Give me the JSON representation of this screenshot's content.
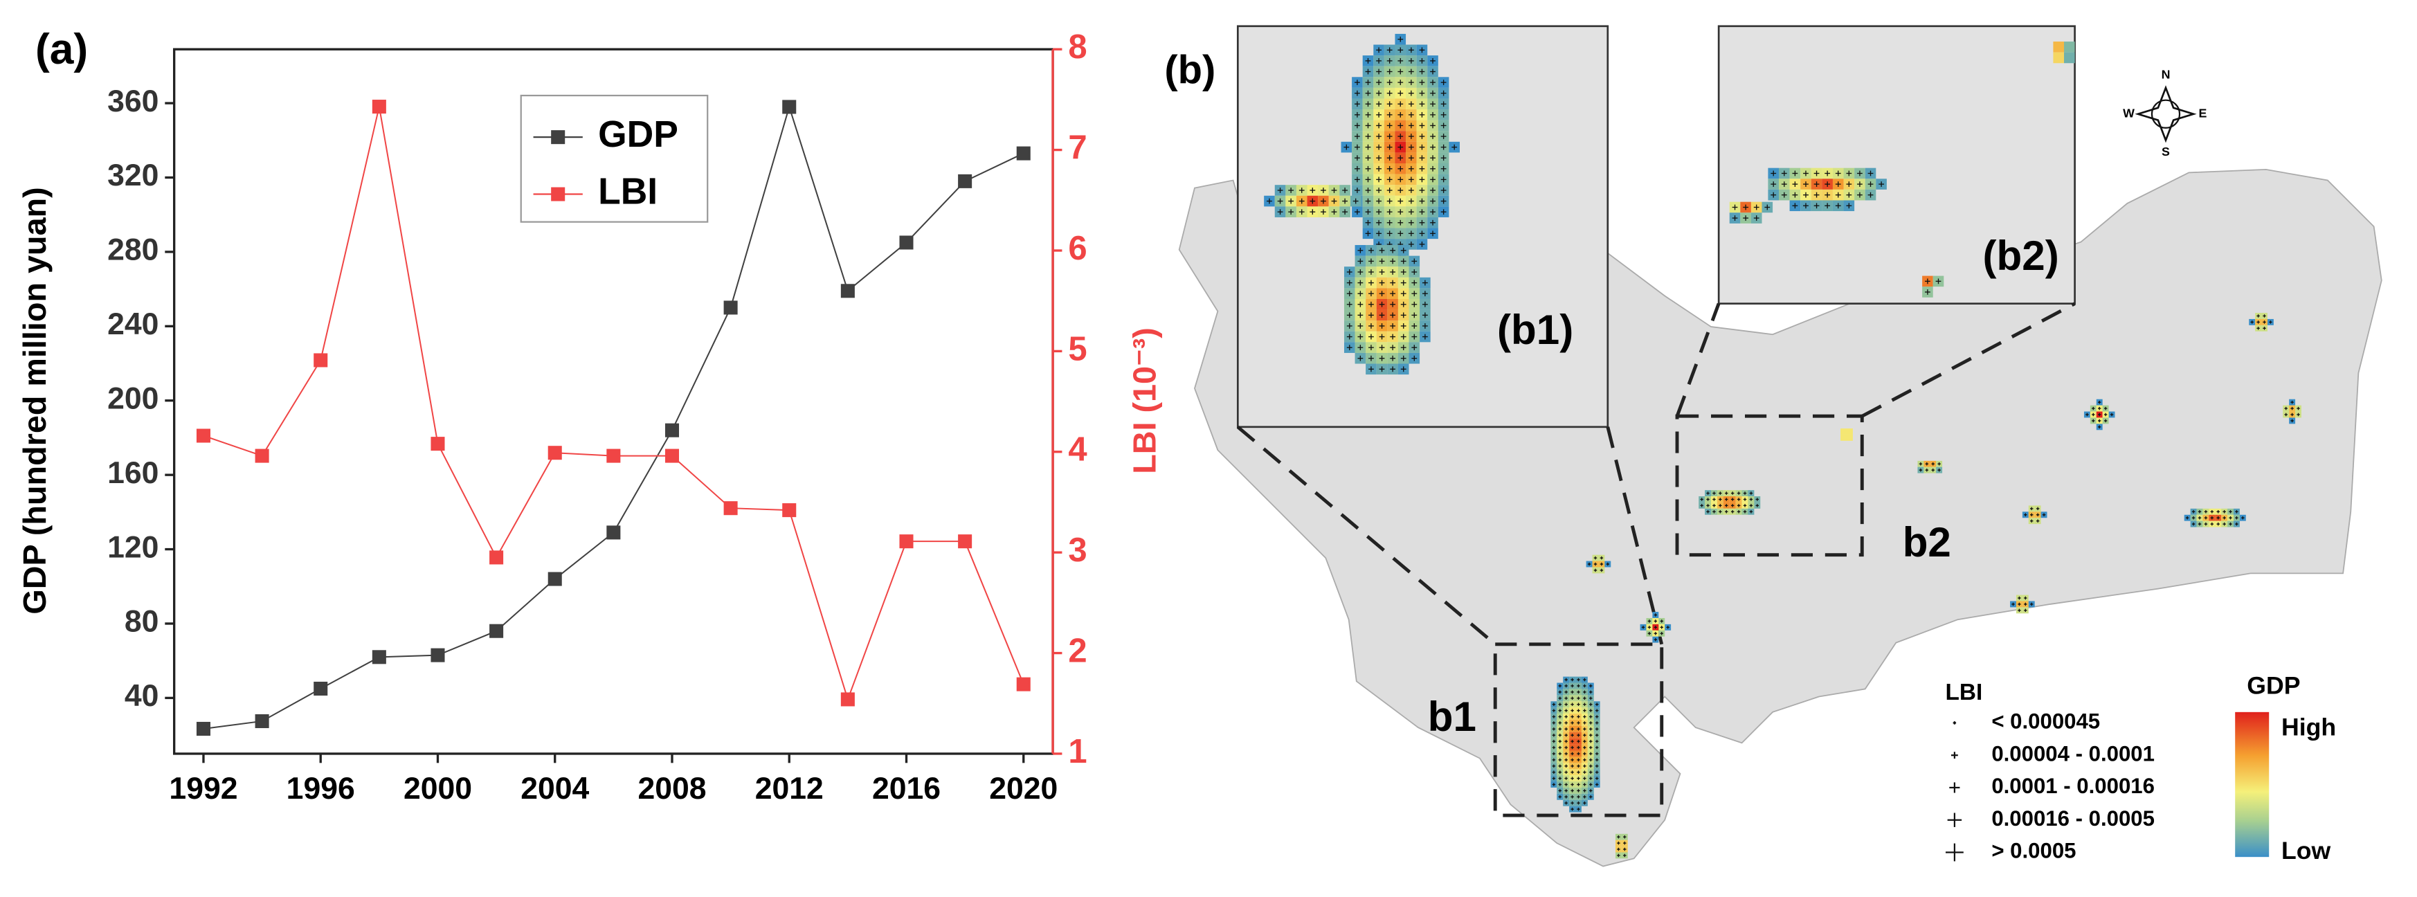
{
  "chart_data": {
    "type": "line",
    "panel_label": "(a)",
    "x": [
      1992,
      1994,
      1996,
      1998,
      2000,
      2002,
      2004,
      2006,
      2008,
      2010,
      2012,
      2014,
      2016,
      2018,
      2020
    ],
    "series": [
      {
        "name": "GDP",
        "color": "#404040",
        "values": [
          23.4,
          27.5,
          45,
          62,
          63,
          76,
          104,
          129,
          184,
          250,
          358,
          259,
          285,
          318,
          333
        ]
      },
      {
        "name": "LBI",
        "color": "#f04545",
        "axis": "y2",
        "values": [
          4.16,
          3.96,
          4.91,
          7.43,
          4.08,
          2.95,
          3.99,
          3.96,
          3.96,
          3.44,
          3.42,
          1.54,
          3.11,
          3.11,
          1.69
        ]
      }
    ],
    "ylabel": "GDP (hundred million yuan)",
    "y2label": "LBI (10⁻³)",
    "xlim": [
      1991,
      2021
    ],
    "xticks": [
      1992,
      1996,
      2000,
      2004,
      2008,
      2012,
      2016,
      2020
    ],
    "ylim": [
      10,
      389
    ],
    "yticks": [
      40,
      80,
      120,
      160,
      200,
      240,
      280,
      320,
      360
    ],
    "y2lim": [
      1,
      8
    ],
    "y2ticks": [
      1,
      2,
      3,
      4,
      5,
      6,
      7,
      8
    ],
    "legend": "upper center",
    "marker": "square",
    "grid": false
  },
  "map": {
    "panel_label": "(b)",
    "inset_b1": "(b1)",
    "inset_b2": "(b2)",
    "box_b1": "b1",
    "box_b2": "b2",
    "compass": {
      "n": "N",
      "s": "S",
      "e": "E",
      "w": "W"
    },
    "legend": {
      "lbi_title": "LBI",
      "lbi_classes": [
        "< 0.000045",
        "0.00004 - 0.0001",
        "0.0001 - 0.00016",
        "0.00016 - 0.0005",
        "> 0.0005"
      ],
      "gdp_title": "GDP",
      "gdp_high": "High",
      "gdp_low": "Low"
    }
  }
}
